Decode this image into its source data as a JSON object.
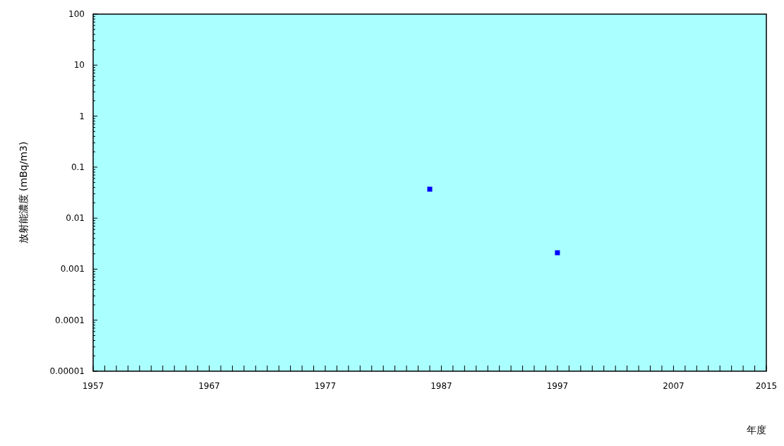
{
  "chart_data": {
    "type": "scatter",
    "xlabel": "年度",
    "ylabel": "放射能濃度 (mBq/m3)",
    "log": "y",
    "grid": false,
    "marker": "square",
    "x": [
      1986,
      1997
    ],
    "series": [
      {
        "color": "#0000ff",
        "values": [
          0.037,
          0.0021
        ]
      }
    ],
    "xlim": [
      1957,
      2015
    ],
    "xticks": [
      1957,
      {
        "value": 1958,
        "label": null
      },
      {
        "value": 1959,
        "label": null
      },
      {
        "value": 1960,
        "label": null
      },
      {
        "value": 1961,
        "label": null
      },
      {
        "value": 1962,
        "label": null
      },
      {
        "value": 1963,
        "label": null
      },
      {
        "value": 1964,
        "label": null
      },
      {
        "value": 1965,
        "label": null
      },
      {
        "value": 1966,
        "label": null
      },
      1967,
      {
        "value": 1968,
        "label": null
      },
      {
        "value": 1969,
        "label": null
      },
      {
        "value": 1970,
        "label": null
      },
      {
        "value": 1971,
        "label": null
      },
      {
        "value": 1972,
        "label": null
      },
      {
        "value": 1973,
        "label": null
      },
      {
        "value": 1974,
        "label": null
      },
      {
        "value": 1975,
        "label": null
      },
      {
        "value": 1976,
        "label": null
      },
      1977,
      {
        "value": 1978,
        "label": null
      },
      {
        "value": 1979,
        "label": null
      },
      {
        "value": 1980,
        "label": null
      },
      {
        "value": 1981,
        "label": null
      },
      {
        "value": 1982,
        "label": null
      },
      {
        "value": 1983,
        "label": null
      },
      {
        "value": 1984,
        "label": null
      },
      {
        "value": 1985,
        "label": null
      },
      {
        "value": 1986,
        "label": null
      },
      1987,
      {
        "value": 1988,
        "label": null
      },
      {
        "value": 1989,
        "label": null
      },
      {
        "value": 1990,
        "label": null
      },
      {
        "value": 1991,
        "label": null
      },
      {
        "value": 1992,
        "label": null
      },
      {
        "value": 1993,
        "label": null
      },
      {
        "value": 1994,
        "label": null
      },
      {
        "value": 1995,
        "label": null
      },
      {
        "value": 1996,
        "label": null
      },
      1997,
      {
        "value": 1998,
        "label": null
      },
      {
        "value": 1999,
        "label": null
      },
      {
        "value": 2000,
        "label": null
      },
      {
        "value": 2001,
        "label": null
      },
      {
        "value": 2002,
        "label": null
      },
      {
        "value": 2003,
        "label": null
      },
      {
        "value": 2004,
        "label": null
      },
      {
        "value": 2005,
        "label": null
      },
      {
        "value": 2006,
        "label": null
      },
      2007,
      {
        "value": 2008,
        "label": null
      },
      {
        "value": 2009,
        "label": null
      },
      {
        "value": 2010,
        "label": null
      },
      {
        "value": 2011,
        "label": null
      },
      {
        "value": 2012,
        "label": null
      },
      {
        "value": 2013,
        "label": null
      },
      {
        "value": 2014,
        "label": null
      },
      2015
    ],
    "ylim": [
      1e-05,
      100
    ],
    "yticks": [
      {
        "value": 1e-05,
        "label": "0.00001"
      },
      {
        "value": 0.0001,
        "label": "0.0001"
      },
      {
        "value": 0.001,
        "label": "0.001"
      },
      {
        "value": 0.01,
        "label": "0.01"
      },
      {
        "value": 0.1,
        "label": "0.1"
      },
      1,
      10,
      100
    ]
  }
}
